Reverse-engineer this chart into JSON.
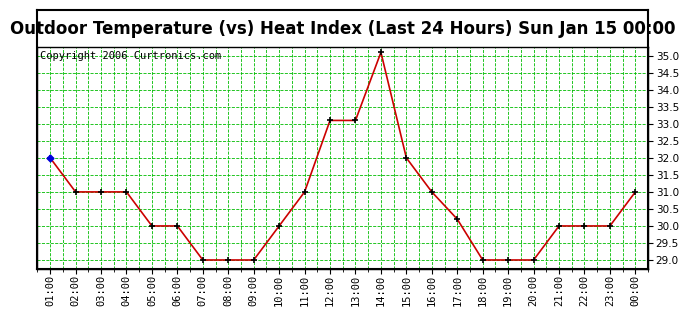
{
  "title": "Outdoor Temperature (vs) Heat Index (Last 24 Hours) Sun Jan 15 00:00",
  "copyright": "Copyright 2006 Curtronics.com",
  "x_labels": [
    "01:00",
    "02:00",
    "03:00",
    "04:00",
    "05:00",
    "06:00",
    "07:00",
    "08:00",
    "09:00",
    "10:00",
    "11:00",
    "12:00",
    "13:00",
    "14:00",
    "15:00",
    "16:00",
    "17:00",
    "18:00",
    "19:00",
    "20:00",
    "21:00",
    "22:00",
    "23:00",
    "00:00"
  ],
  "y_values": [
    32.0,
    31.0,
    31.0,
    31.0,
    30.0,
    30.0,
    29.0,
    29.0,
    29.0,
    30.0,
    31.0,
    33.1,
    33.1,
    35.1,
    32.0,
    31.0,
    30.2,
    29.0,
    29.0,
    29.0,
    30.0,
    30.0,
    30.0,
    31.0
  ],
  "line_color": "#cc0000",
  "marker_color": "#000000",
  "marker_size": 5,
  "bg_color": "#ffffff",
  "plot_bg_color": "#ffffff",
  "grid_color": "#00bb00",
  "ylim": [
    28.75,
    35.25
  ],
  "yticks": [
    29.0,
    29.5,
    30.0,
    30.5,
    31.0,
    31.5,
    32.0,
    32.5,
    33.0,
    33.5,
    34.0,
    34.5,
    35.0
  ],
  "title_fontsize": 12,
  "copyright_fontsize": 7.5,
  "tick_fontsize": 7.5
}
